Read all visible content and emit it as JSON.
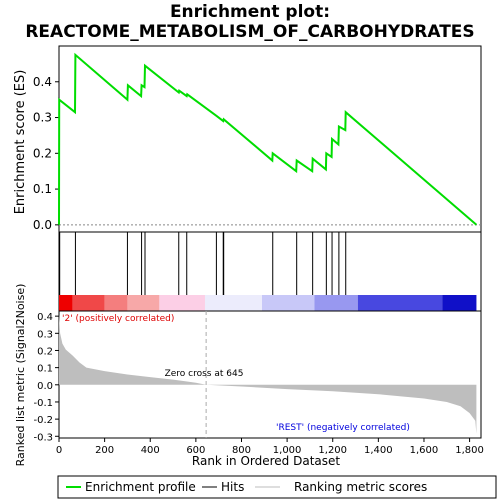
{
  "title_line1": "Enrichment plot:",
  "title_line2": "REACTOME_METABOLISM_OF_CARBOHYDRATES",
  "colors": {
    "es_line": "#00dd00",
    "hits": "#000000",
    "metric_fill": "#bebebe",
    "pos_label": "#dd0000",
    "neg_label": "#0000dd",
    "zero_cross_line": "#aaaaaa"
  },
  "chart_data": {
    "type": "line",
    "x_range": [
      0,
      1850
    ],
    "x_ticks": [
      "0",
      "200",
      "400",
      "600",
      "800",
      "1,000",
      "1,200",
      "1,400",
      "1,600",
      "1,800"
    ],
    "x_tick_values": [
      0,
      200,
      400,
      600,
      800,
      1000,
      1200,
      1400,
      1600,
      1800
    ],
    "xlabel": "Rank in Ordered Dataset",
    "es_panel": {
      "ylabel": "Enrichment score (ES)",
      "ylim": [
        -0.02,
        0.5
      ],
      "y_ticks": [
        "0.0",
        "0.1",
        "0.2",
        "0.3",
        "0.4"
      ],
      "y_tick_values": [
        0.0,
        0.1,
        0.2,
        0.3,
        0.4
      ],
      "points": [
        [
          0,
          0.0
        ],
        [
          1,
          0.35
        ],
        [
          70,
          0.315
        ],
        [
          72,
          0.475
        ],
        [
          300,
          0.35
        ],
        [
          302,
          0.39
        ],
        [
          360,
          0.36
        ],
        [
          362,
          0.39
        ],
        [
          375,
          0.385
        ],
        [
          377,
          0.445
        ],
        [
          525,
          0.37
        ],
        [
          527,
          0.375
        ],
        [
          560,
          0.36
        ],
        [
          562,
          0.365
        ],
        [
          690,
          0.305
        ],
        [
          720,
          0.29
        ],
        [
          722,
          0.295
        ],
        [
          935,
          0.18
        ],
        [
          937,
          0.2
        ],
        [
          1040,
          0.15
        ],
        [
          1042,
          0.18
        ],
        [
          1110,
          0.15
        ],
        [
          1112,
          0.185
        ],
        [
          1170,
          0.155
        ],
        [
          1172,
          0.2
        ],
        [
          1195,
          0.19
        ],
        [
          1197,
          0.24
        ],
        [
          1225,
          0.225
        ],
        [
          1227,
          0.275
        ],
        [
          1255,
          0.265
        ],
        [
          1257,
          0.315
        ],
        [
          1830,
          0.0
        ]
      ]
    },
    "hits": [
      3,
      72,
      300,
      362,
      377,
      525,
      560,
      690,
      720,
      722,
      937,
      1042,
      1112,
      1172,
      1197,
      1227,
      1257
    ],
    "metric_panel": {
      "ylabel": "Ranked list metric (Signal2Noise)",
      "ylim": [
        -0.31,
        0.43
      ],
      "y_ticks": [
        "0.4",
        "0.3",
        "0.2",
        "0.1",
        "0.0",
        "-0.1",
        "-0.2",
        "-0.3"
      ],
      "y_tick_values": [
        0.4,
        0.3,
        0.2,
        0.1,
        0.0,
        -0.1,
        -0.2,
        -0.3
      ],
      "curve": [
        [
          0,
          0.41
        ],
        [
          5,
          0.3
        ],
        [
          15,
          0.24
        ],
        [
          30,
          0.205
        ],
        [
          60,
          0.17
        ],
        [
          90,
          0.13
        ],
        [
          120,
          0.1
        ],
        [
          200,
          0.08
        ],
        [
          300,
          0.06
        ],
        [
          400,
          0.045
        ],
        [
          500,
          0.03
        ],
        [
          600,
          0.012
        ],
        [
          645,
          0.0
        ],
        [
          800,
          -0.01
        ],
        [
          1000,
          -0.025
        ],
        [
          1200,
          -0.038
        ],
        [
          1400,
          -0.055
        ],
        [
          1600,
          -0.08
        ],
        [
          1700,
          -0.1
        ],
        [
          1760,
          -0.125
        ],
        [
          1800,
          -0.165
        ],
        [
          1825,
          -0.21
        ],
        [
          1830,
          -0.285
        ]
      ],
      "zero_cross_label": "Zero cross at 645",
      "zero_cross_rank": 645,
      "pos_label": "'2' (positively correlated)",
      "neg_label": "'REST' (negatively correlated)"
    },
    "color_bar": [
      {
        "from": 0,
        "to": 60,
        "color": "#ee0000"
      },
      {
        "from": 60,
        "to": 200,
        "color": "#f04848"
      },
      {
        "from": 200,
        "to": 300,
        "color": "#f47e7e"
      },
      {
        "from": 300,
        "to": 440,
        "color": "#f7a8a8"
      },
      {
        "from": 440,
        "to": 640,
        "color": "#fccfe6"
      },
      {
        "from": 640,
        "to": 890,
        "color": "#ececfc"
      },
      {
        "from": 890,
        "to": 1120,
        "color": "#c8c8f8"
      },
      {
        "from": 1120,
        "to": 1310,
        "color": "#9898f0"
      },
      {
        "from": 1310,
        "to": 1680,
        "color": "#4848e0"
      },
      {
        "from": 1680,
        "to": 1830,
        "color": "#1010c8"
      }
    ],
    "legend": {
      "placement": "bottom",
      "entries": [
        "Enrichment profile",
        "Hits",
        "Ranking metric scores"
      ]
    }
  }
}
